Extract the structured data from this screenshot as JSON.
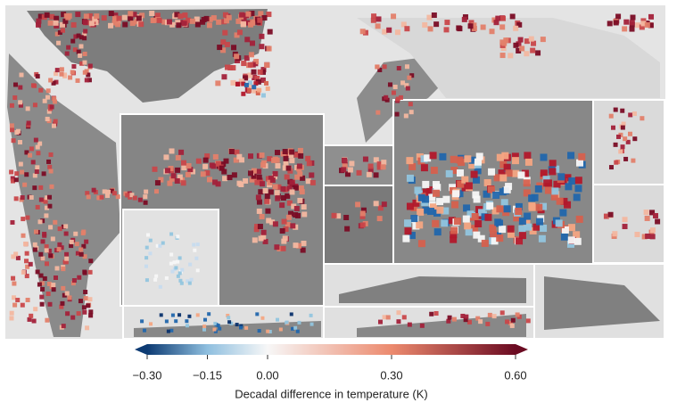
{
  "colorbar": {
    "label": "Decadal difference in temperature (K)",
    "lim": [
      -0.3,
      0.6
    ],
    "center": 0,
    "ticks": [
      {
        "value": -0.3,
        "label": "−0.30"
      },
      {
        "value": -0.15,
        "label": "−0.15"
      },
      {
        "value": 0,
        "label": "0.00"
      },
      {
        "value": 0.3,
        "label": "0.30"
      },
      {
        "value": 0.6,
        "label": "0.60"
      }
    ],
    "colors": [
      "#0d3b73",
      "#8fbfdf",
      "#f7f7f7",
      "#ec8a6e",
      "#6b0b22"
    ]
  }
}
